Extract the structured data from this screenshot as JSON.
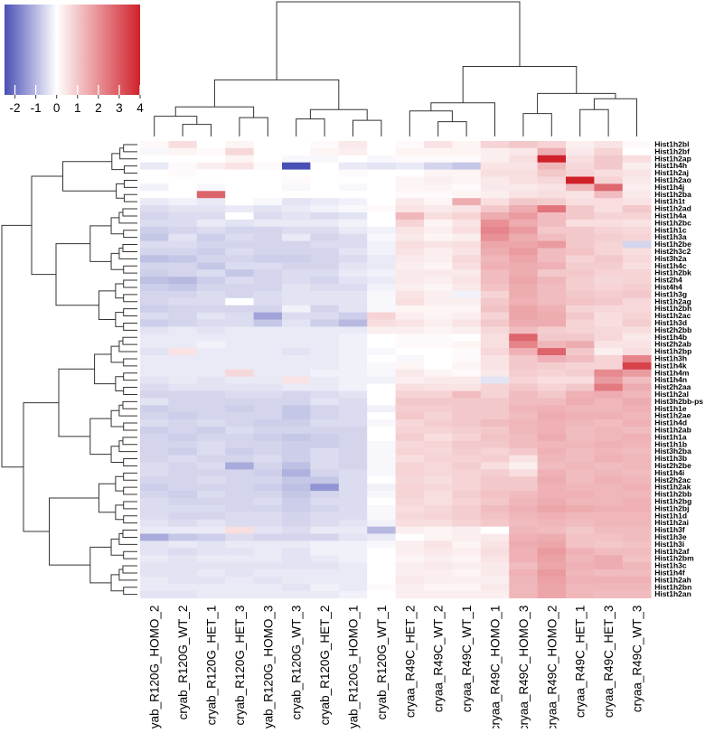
{
  "chart_data": {
    "type": "heatmap",
    "title": "",
    "color_scale": {
      "min": -2.5,
      "max": 4,
      "low_color": "#4a4fb5",
      "mid_color": "#ffffff",
      "high_color": "#d0212b",
      "ticks": [
        -2,
        -1,
        0,
        1,
        2,
        3,
        4
      ],
      "tick_labels": [
        "-2",
        "-1",
        "0",
        "1",
        "2",
        "3",
        "4"
      ]
    },
    "columns": [
      "cryab_R120G_HOMO_2",
      "cryab_R120G_WT_2",
      "cryab_R120G_HET_1",
      "cryab_R120G_HET_3",
      "cryab_R120G_HOMO_3",
      "cryab_R120G_WT_3",
      "cryab_R120G_HET_2",
      "cryab_R120G_HOMO_1",
      "cryab_R120G_WT_1",
      "cryaa_R49C_HET_2",
      "cryaa_R49C_WT_2",
      "cryaa_R49C_WT_1",
      "cryaa_R49C_HOMO_1",
      "cryaa_R49C_HOMO_3",
      "cryaa_R49C_HOMO_2",
      "cryaa_R49C_HET_1",
      "cryaa_R49C_HET_3",
      "cryaa_R49C_WT_3"
    ],
    "rows": [
      "Hist1h2bl",
      "Hist1h2bf",
      "Hist1h2ap",
      "Hist1h4h",
      "Hist1h2aj",
      "Hist1h2ao",
      "Hist1h4j",
      "Hist1h2ba",
      "Hist1h1t",
      "Hist1h2ad",
      "Hist1h4a",
      "Hist1h2bc",
      "Hist1h1c",
      "Hist1h3a",
      "Hist1h2be",
      "Hist2h3c2",
      "Hist3h2a",
      "Hist1h4c",
      "Hist1h2bk",
      "Hist2h4",
      "Hist4h4",
      "Hist1h3g",
      "Hist1h2ag",
      "Hist1h2bh",
      "Hist1h2ac",
      "Hist1h3d",
      "Hist2h2bb",
      "Hist1h4b",
      "Hist2h2ab",
      "Hist1h2bp",
      "Hist1h3h",
      "Hist1h4k",
      "Hist1h4m",
      "Hist1h4n",
      "Hist2h2aa",
      "Hist1h2al",
      "Hist3h2bb-ps",
      "Hist1h1e",
      "Hist1h2ae",
      "Hist1h4d",
      "Hist1h2ab",
      "Hist1h1a",
      "Hist1h1b",
      "Hist3h2ba",
      "Hist1h3b",
      "Hist2h2be",
      "Hist1h4i",
      "Hist2h2ac",
      "Hist1h2ak",
      "Hist1h2bb",
      "Hist1h2bg",
      "Hist1h2bj",
      "Hist1h1d",
      "Hist1h2ai",
      "Hist1h3f",
      "Hist1h3e",
      "Hist1h3i",
      "Hist1h2af",
      "Hist1h2bm",
      "Hist1h3c",
      "Hist1h4f",
      "Hist1h2ah",
      "Hist1h2bn",
      "Hist1h2an"
    ],
    "values": [
      [
        0.1,
        0.6,
        0.0,
        0.2,
        0.0,
        0.0,
        0.1,
        0.4,
        0.0,
        0.1,
        0.5,
        0.2,
        0.8,
        1.0,
        0.8,
        0.3,
        0.5,
        0.1
      ],
      [
        -0.1,
        0.2,
        0.1,
        0.7,
        0.0,
        0.0,
        0.2,
        0.3,
        0.0,
        0.2,
        0.2,
        0.2,
        0.3,
        0.4,
        1.5,
        0.4,
        0.8,
        0.0
      ],
      [
        0.0,
        0.0,
        0.0,
        0.2,
        0.0,
        -0.1,
        -0.1,
        0.0,
        -0.1,
        0.1,
        0.1,
        0.1,
        0.3,
        0.6,
        4.0,
        0.6,
        1.0,
        0.6
      ],
      [
        -0.3,
        0.1,
        0.3,
        0.5,
        0.1,
        -2.5,
        0.0,
        -0.3,
        -0.4,
        -0.3,
        -0.6,
        -0.8,
        0.5,
        0.5,
        1.3,
        0.7,
        1.0,
        0.3
      ],
      [
        0.0,
        0.1,
        0.0,
        0.0,
        0.0,
        0.0,
        0.0,
        0.1,
        0.0,
        0.0,
        0.2,
        0.2,
        0.6,
        0.6,
        1.0,
        0.8,
        0.6,
        0.5
      ],
      [
        0.0,
        0.0,
        0.0,
        0.0,
        0.0,
        0.1,
        0.0,
        0.0,
        0.0,
        0.2,
        0.3,
        0.2,
        0.4,
        0.6,
        0.7,
        4.0,
        0.8,
        0.4
      ],
      [
        -0.2,
        0.0,
        -0.1,
        0.0,
        0.0,
        -0.1,
        0.0,
        -0.1,
        0.0,
        0.2,
        0.2,
        0.1,
        0.4,
        0.4,
        0.5,
        1.3,
        2.7,
        0.3
      ],
      [
        0.0,
        0.0,
        2.8,
        0.0,
        0.0,
        0.0,
        0.0,
        0.0,
        0.0,
        0.1,
        0.1,
        0.2,
        0.3,
        0.5,
        0.6,
        0.5,
        1.2,
        0.4
      ],
      [
        -0.3,
        -0.2,
        -0.3,
        0.0,
        -0.1,
        -0.4,
        -0.3,
        -0.2,
        0.0,
        0.4,
        0.2,
        1.5,
        0.6,
        1.0,
        0.9,
        0.6,
        0.6,
        0.5
      ],
      [
        -0.5,
        -0.4,
        -0.4,
        -0.3,
        -0.4,
        -0.3,
        -0.2,
        -0.1,
        0.1,
        0.5,
        0.4,
        0.5,
        1.0,
        1.5,
        2.5,
        1.0,
        0.6,
        1.0
      ],
      [
        -0.6,
        -0.5,
        -0.5,
        0.0,
        -0.5,
        -0.4,
        -0.5,
        -0.4,
        0.0,
        1.3,
        0.6,
        0.8,
        1.5,
        1.8,
        1.2,
        1.0,
        0.8,
        0.8
      ],
      [
        -0.5,
        -0.5,
        -0.3,
        -0.4,
        -0.3,
        -0.3,
        -0.3,
        -0.2,
        0.0,
        0.8,
        0.2,
        0.5,
        2.0,
        1.5,
        1.2,
        0.6,
        0.6,
        0.5
      ],
      [
        -0.7,
        -0.6,
        -0.5,
        -0.6,
        -0.6,
        -0.5,
        -0.5,
        -0.3,
        -0.2,
        0.5,
        0.3,
        0.6,
        2.2,
        1.8,
        1.0,
        1.0,
        0.8,
        0.7
      ],
      [
        -0.8,
        -0.4,
        -0.7,
        -0.5,
        -0.6,
        -0.3,
        -0.6,
        -0.5,
        -0.1,
        0.4,
        0.2,
        0.3,
        2.0,
        1.5,
        1.2,
        1.0,
        0.9,
        0.8
      ],
      [
        -0.5,
        -0.5,
        -0.6,
        -0.6,
        -0.6,
        -0.6,
        -0.5,
        -0.5,
        -0.2,
        0.6,
        0.5,
        0.6,
        1.6,
        1.6,
        1.8,
        1.0,
        0.8,
        -0.6
      ],
      [
        -0.6,
        -0.6,
        -0.7,
        -0.5,
        -0.6,
        -0.6,
        -0.6,
        -0.4,
        -0.2,
        0.5,
        0.3,
        0.5,
        1.5,
        1.8,
        1.2,
        1.1,
        0.8,
        0.6
      ],
      [
        -0.9,
        -0.8,
        -0.6,
        -0.6,
        -0.7,
        -0.7,
        -0.6,
        -0.5,
        -0.3,
        0.4,
        0.3,
        0.7,
        1.3,
        1.6,
        1.2,
        0.8,
        1.0,
        0.7
      ],
      [
        -0.6,
        -0.6,
        -0.8,
        -0.5,
        -0.5,
        -0.6,
        -0.6,
        -0.4,
        -0.3,
        0.3,
        0.2,
        0.6,
        1.4,
        1.5,
        1.4,
        0.9,
        0.9,
        0.6
      ],
      [
        -0.7,
        -0.6,
        -0.5,
        -0.8,
        -0.6,
        -0.5,
        -0.5,
        -0.3,
        -0.2,
        0.4,
        0.4,
        0.4,
        1.2,
        1.5,
        1.0,
        1.0,
        0.8,
        0.8
      ],
      [
        -0.9,
        -1.0,
        -0.7,
        -0.5,
        -0.6,
        -0.5,
        -0.6,
        -0.4,
        -0.3,
        0.4,
        0.3,
        0.5,
        1.2,
        1.6,
        1.3,
        0.9,
        0.7,
        0.8
      ],
      [
        -0.7,
        -0.8,
        -0.6,
        -0.6,
        -0.6,
        -0.4,
        -0.5,
        -0.5,
        -0.2,
        0.3,
        0.2,
        0.4,
        1.1,
        1.5,
        1.2,
        0.9,
        0.8,
        0.9
      ],
      [
        -0.6,
        -0.6,
        -0.5,
        -0.6,
        -0.5,
        -0.4,
        -0.4,
        -0.4,
        -0.1,
        0.5,
        0.3,
        -0.2,
        0.8,
        1.5,
        1.2,
        1.0,
        0.9,
        1.0
      ],
      [
        -0.6,
        -0.5,
        -0.5,
        0.0,
        -0.5,
        -0.4,
        -0.4,
        -0.4,
        -0.1,
        0.6,
        0.3,
        0.3,
        1.0,
        1.4,
        1.2,
        1.1,
        1.0,
        0.7
      ],
      [
        -0.7,
        -0.6,
        -0.6,
        -0.6,
        -0.6,
        -0.2,
        -0.6,
        -0.4,
        -0.1,
        0.2,
        0.2,
        0.2,
        1.1,
        1.6,
        1.4,
        0.8,
        0.7,
        0.7
      ],
      [
        -0.5,
        -0.6,
        -0.4,
        -0.5,
        -1.3,
        -0.5,
        -0.5,
        -0.7,
        0.8,
        0.3,
        0.2,
        0.3,
        0.8,
        1.6,
        1.5,
        1.0,
        0.6,
        0.8
      ],
      [
        -0.7,
        -0.6,
        -0.5,
        -0.5,
        -0.8,
        -0.4,
        -0.7,
        -1.0,
        0.6,
        0.5,
        0.3,
        0.5,
        1.0,
        1.5,
        1.5,
        0.8,
        0.6,
        0.9
      ],
      [
        -0.4,
        -0.3,
        -0.4,
        -0.3,
        -0.3,
        -0.3,
        -0.3,
        -0.3,
        0.3,
        0.3,
        0.2,
        0.3,
        0.7,
        1.2,
        0.9,
        0.8,
        0.7,
        0.6
      ],
      [
        -0.3,
        -0.3,
        -0.3,
        -0.3,
        -0.3,
        -0.3,
        -0.3,
        -0.2,
        0.0,
        0.1,
        0.1,
        0.0,
        0.6,
        2.8,
        1.0,
        1.0,
        0.7,
        0.4
      ],
      [
        -0.3,
        -0.3,
        -0.2,
        -0.3,
        -0.3,
        -0.3,
        -0.3,
        -0.2,
        0.0,
        0.1,
        0.1,
        0.2,
        0.6,
        2.2,
        1.3,
        1.5,
        0.5,
        0.5
      ],
      [
        -0.4,
        0.5,
        -0.3,
        -0.3,
        -0.3,
        -0.4,
        -0.3,
        -0.2,
        -0.1,
        0.0,
        0.0,
        0.1,
        0.7,
        1.4,
        2.8,
        1.0,
        0.3,
        0.6
      ],
      [
        -0.3,
        -0.3,
        -0.3,
        -0.3,
        -0.3,
        -0.3,
        -0.3,
        -0.2,
        0.0,
        -0.1,
        0.0,
        0.1,
        0.5,
        1.0,
        1.4,
        1.2,
        0.8,
        2.2
      ],
      [
        -0.3,
        -0.3,
        -0.3,
        -0.3,
        -0.3,
        -0.3,
        -0.3,
        -0.2,
        -0.1,
        0.2,
        0.0,
        0.2,
        0.5,
        1.0,
        0.9,
        0.8,
        0.8,
        3.4
      ],
      [
        -0.3,
        -0.3,
        -0.3,
        0.7,
        -0.3,
        -0.3,
        -0.2,
        -0.2,
        -0.1,
        0.4,
        0.2,
        0.1,
        0.4,
        0.9,
        0.8,
        0.9,
        2.1,
        1.8
      ],
      [
        -0.4,
        -0.3,
        -0.4,
        -0.3,
        -0.3,
        0.5,
        -0.3,
        -0.2,
        -0.2,
        0.3,
        0.4,
        0.4,
        -0.4,
        0.8,
        0.6,
        0.6,
        1.8,
        1.2
      ],
      [
        -0.5,
        -0.4,
        -0.4,
        -0.4,
        -0.4,
        -0.3,
        -0.3,
        -0.2,
        0.0,
        0.6,
        0.5,
        0.5,
        0.8,
        1.0,
        0.8,
        1.0,
        2.4,
        1.5
      ],
      [
        -0.6,
        -0.6,
        -0.6,
        -0.5,
        -0.5,
        -0.6,
        -0.5,
        -0.4,
        0.0,
        0.8,
        0.8,
        1.2,
        0.8,
        1.2,
        1.0,
        1.4,
        1.5,
        1.3
      ],
      [
        -0.4,
        -0.6,
        -0.6,
        -0.6,
        -0.6,
        -0.6,
        -0.4,
        -0.5,
        0.0,
        1.0,
        1.0,
        1.0,
        1.0,
        1.2,
        1.2,
        1.5,
        1.3,
        1.5
      ],
      [
        -0.7,
        -0.6,
        -0.6,
        -0.7,
        -0.6,
        -0.8,
        -0.6,
        -0.5,
        -0.2,
        0.9,
        0.9,
        1.0,
        1.0,
        1.3,
        1.4,
        1.3,
        1.3,
        1.4
      ],
      [
        -0.6,
        -0.7,
        -0.6,
        -0.6,
        -0.6,
        -0.8,
        -0.6,
        -0.5,
        0.0,
        1.0,
        0.8,
        1.0,
        1.0,
        1.2,
        1.5,
        1.4,
        1.4,
        1.3
      ],
      [
        -0.5,
        -0.6,
        -0.5,
        -0.6,
        -0.7,
        -0.7,
        -0.5,
        -0.5,
        -0.1,
        0.7,
        0.9,
        1.0,
        1.2,
        1.3,
        1.4,
        1.3,
        1.2,
        1.4
      ],
      [
        -0.7,
        -0.6,
        -0.7,
        -0.5,
        -0.6,
        -0.6,
        -0.6,
        -0.6,
        0.0,
        0.8,
        0.8,
        0.9,
        1.0,
        1.3,
        1.4,
        1.2,
        1.3,
        1.2
      ],
      [
        -0.6,
        -0.7,
        -0.6,
        -0.6,
        -0.7,
        -0.8,
        -0.7,
        -0.6,
        0.0,
        0.9,
        0.6,
        0.8,
        1.1,
        1.2,
        1.5,
        1.2,
        1.3,
        1.4
      ],
      [
        -0.6,
        -0.6,
        -0.5,
        -0.6,
        -0.6,
        -0.7,
        -0.7,
        -0.6,
        -0.1,
        0.7,
        0.8,
        1.0,
        1.0,
        1.2,
        1.3,
        1.3,
        1.4,
        1.3
      ],
      [
        -0.6,
        -0.7,
        -0.5,
        -0.7,
        -0.6,
        -0.7,
        -0.5,
        -0.6,
        -0.1,
        0.8,
        0.7,
        0.9,
        0.8,
        1.0,
        1.4,
        1.2,
        1.3,
        1.2
      ],
      [
        -0.6,
        -0.5,
        -0.6,
        -0.6,
        -0.5,
        -0.7,
        -0.5,
        -0.6,
        -0.1,
        0.6,
        0.8,
        0.8,
        0.9,
        0.5,
        1.3,
        1.2,
        1.4,
        1.3
      ],
      [
        -0.5,
        -0.6,
        -0.5,
        -1.2,
        -0.6,
        -0.9,
        -0.5,
        -0.6,
        -0.1,
        0.8,
        0.7,
        0.9,
        0.6,
        0.3,
        1.2,
        1.3,
        1.2,
        1.3
      ],
      [
        -0.5,
        -0.6,
        -0.6,
        -0.6,
        -0.7,
        -1.1,
        -0.6,
        -0.5,
        -0.1,
        0.8,
        0.7,
        0.8,
        0.9,
        0.6,
        1.4,
        1.2,
        1.3,
        1.2
      ],
      [
        -0.6,
        -0.6,
        -0.5,
        -0.6,
        -0.6,
        -0.8,
        -0.8,
        -0.5,
        0.0,
        0.7,
        0.6,
        0.8,
        1.0,
        1.0,
        1.5,
        1.2,
        1.4,
        1.3
      ],
      [
        -0.7,
        -0.6,
        -0.6,
        -0.6,
        -0.7,
        -0.9,
        -1.5,
        -0.5,
        -0.2,
        0.8,
        0.7,
        0.8,
        1.0,
        1.0,
        1.4,
        1.3,
        1.3,
        1.4
      ],
      [
        -0.6,
        -0.7,
        -0.5,
        -0.6,
        -0.6,
        -0.8,
        -0.6,
        -0.5,
        -0.1,
        0.8,
        0.6,
        0.9,
        1.1,
        1.2,
        1.4,
        1.4,
        1.3,
        1.3
      ],
      [
        -0.5,
        -0.6,
        -0.6,
        -0.6,
        -0.5,
        -0.7,
        -0.5,
        -0.5,
        0.0,
        0.7,
        0.6,
        0.8,
        1.0,
        1.3,
        1.5,
        1.3,
        1.3,
        1.4
      ],
      [
        -0.5,
        -0.5,
        -0.5,
        -0.6,
        -0.6,
        -0.7,
        -0.6,
        -0.5,
        -0.1,
        0.6,
        0.7,
        0.9,
        1.2,
        1.4,
        1.6,
        1.5,
        1.4,
        1.4
      ],
      [
        -0.5,
        -0.6,
        -0.6,
        -0.5,
        -0.5,
        -0.6,
        -0.5,
        -0.5,
        -0.1,
        0.7,
        0.8,
        0.9,
        1.1,
        1.3,
        1.4,
        1.3,
        1.3,
        1.3
      ],
      [
        -0.4,
        -0.5,
        -0.4,
        -0.5,
        -0.5,
        -0.6,
        -0.5,
        -0.4,
        -0.2,
        0.6,
        0.6,
        0.8,
        1.0,
        1.2,
        1.3,
        1.2,
        1.3,
        1.3
      ],
      [
        -0.3,
        -0.3,
        -0.3,
        0.6,
        -0.4,
        -0.5,
        -0.3,
        -0.3,
        -1.0,
        0.3,
        0.2,
        0.3,
        0.0,
        1.3,
        1.2,
        1.0,
        1.2,
        1.2
      ],
      [
        -1.2,
        -0.8,
        -0.7,
        -0.5,
        -0.6,
        -0.6,
        -0.6,
        -0.4,
        -0.3,
        0.0,
        0.2,
        0.3,
        0.4,
        1.4,
        1.5,
        1.1,
        1.1,
        1.2
      ],
      [
        -0.4,
        -0.3,
        -0.4,
        -0.3,
        -0.3,
        -0.3,
        -0.2,
        -0.2,
        -0.1,
        0.3,
        0.5,
        0.2,
        0.5,
        1.5,
        1.6,
        1.1,
        1.0,
        1.1
      ],
      [
        -0.4,
        -0.5,
        -0.4,
        -0.4,
        -0.3,
        -0.4,
        -0.2,
        -0.2,
        0.0,
        0.3,
        0.4,
        0.3,
        0.6,
        1.4,
        1.8,
        1.4,
        1.2,
        1.2
      ],
      [
        -0.3,
        -0.4,
        -0.3,
        -0.3,
        -0.3,
        -0.4,
        -0.3,
        -0.2,
        0.0,
        0.2,
        0.3,
        0.2,
        0.5,
        1.4,
        1.7,
        1.3,
        1.5,
        1.1
      ],
      [
        -0.4,
        -0.4,
        -0.4,
        -0.4,
        -0.4,
        -0.4,
        -0.4,
        -0.3,
        0.0,
        0.3,
        0.4,
        0.3,
        0.4,
        1.2,
        1.6,
        1.4,
        1.5,
        1.3
      ],
      [
        -0.4,
        -0.4,
        -0.3,
        -0.4,
        -0.3,
        -0.3,
        -0.3,
        -0.3,
        0.0,
        0.3,
        0.3,
        0.2,
        0.4,
        1.4,
        1.8,
        1.3,
        1.2,
        1.2
      ],
      [
        -0.3,
        -0.4,
        -0.4,
        -0.3,
        -0.4,
        -0.3,
        -0.3,
        -0.3,
        0.0,
        0.4,
        0.3,
        0.3,
        0.3,
        1.3,
        1.7,
        1.4,
        1.4,
        1.4
      ],
      [
        -0.3,
        -0.3,
        -0.3,
        -0.3,
        -0.3,
        -0.4,
        -0.2,
        -0.3,
        0.1,
        0.3,
        0.2,
        0.2,
        0.4,
        1.3,
        1.6,
        1.3,
        1.3,
        1.3
      ],
      [
        -0.4,
        -0.4,
        -0.3,
        -0.3,
        -0.3,
        -0.3,
        -0.3,
        -0.2,
        0.0,
        0.3,
        0.3,
        0.3,
        0.3,
        1.3,
        1.6,
        1.3,
        1.2,
        1.2
      ]
    ]
  }
}
